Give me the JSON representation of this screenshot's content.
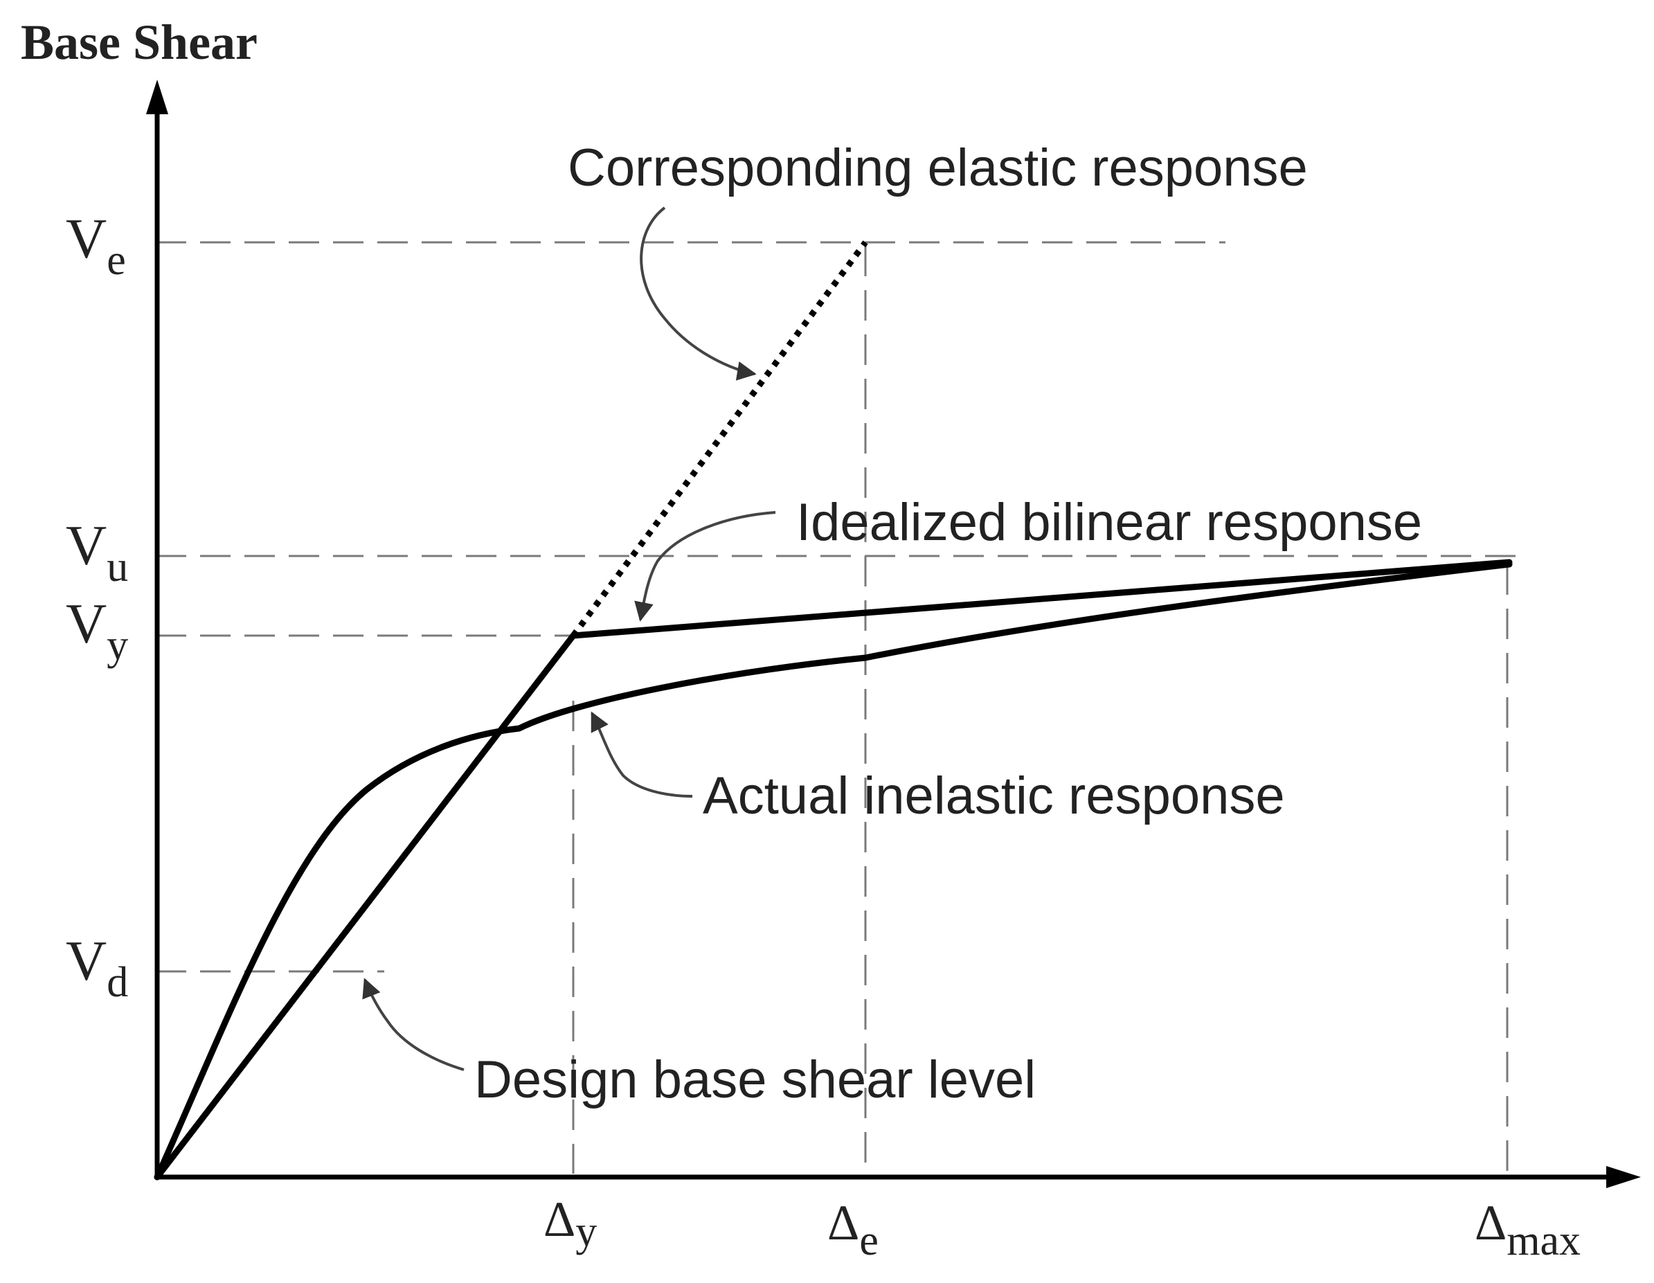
{
  "y_axis_title": "Base Shear",
  "y_levels": {
    "ve": {
      "base": "V",
      "sub": "e"
    },
    "vu": {
      "base": "V",
      "sub": "u"
    },
    "vy": {
      "base": "V",
      "sub": "y"
    },
    "vd": {
      "base": "V",
      "sub": "d"
    }
  },
  "x_levels": {
    "dy": {
      "base": "Δ",
      "sub": "y"
    },
    "de": {
      "base": "Δ",
      "sub": "e"
    },
    "dmax": {
      "base": "Δ",
      "sub": "max"
    }
  },
  "annotations": {
    "elastic": "Corresponding elastic response",
    "bilinear": "Idealized bilinear response",
    "inelastic": "Actual inelastic response",
    "design": "Design base shear level"
  },
  "colors": {
    "line": "#000000",
    "guide": "#7a7a7a",
    "text": "#222222"
  }
}
